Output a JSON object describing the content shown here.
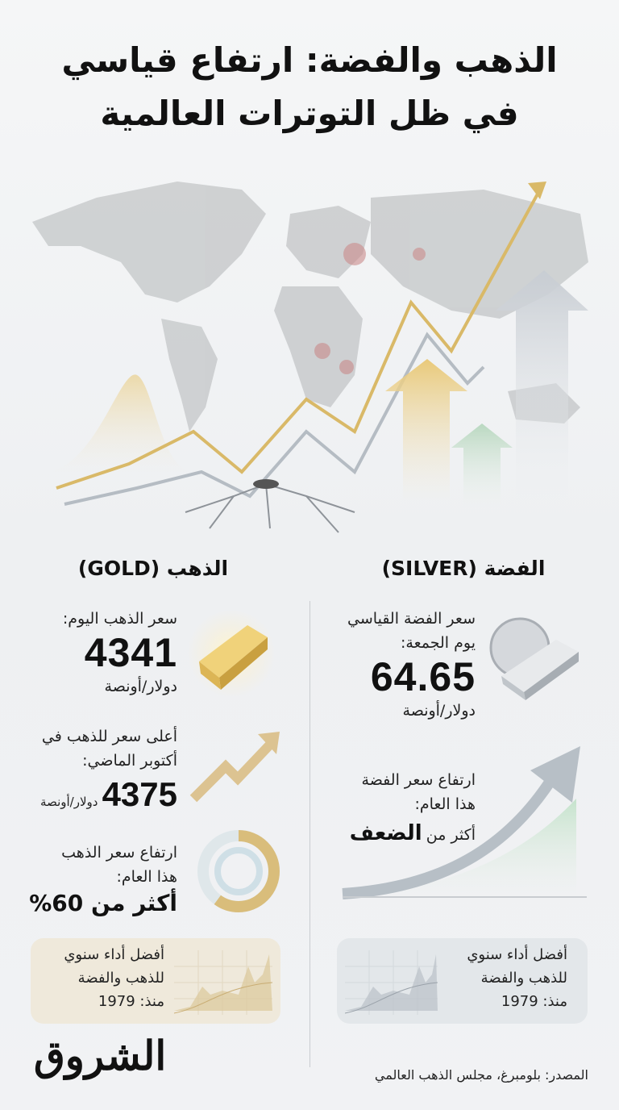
{
  "title": {
    "line1": "الذهب والفضة: ارتفاع قياسي",
    "line2": "في ظل التوترات العالمية"
  },
  "gold": {
    "header": "الذهب (GOLD)",
    "today_label": "سعر الذهب اليوم:",
    "today_price": "4341",
    "unit": "دولار/أونصة",
    "record_label_1": "أعلى سعر للذهب في",
    "record_label_2": "أكتوبر الماضي:",
    "record_price": "4375",
    "record_unit": "دولار/أونصة",
    "rise_label_1": "ارتفاع سعر الذهب",
    "rise_label_2": "هذا العام:",
    "rise_value": "أكثر من 60%",
    "rise_percent": 60,
    "card": {
      "line1": "أفضل أداء سنوي",
      "line2": "للذهب والفضة",
      "line3": "منذ: 1979"
    },
    "color": "#d4b46a"
  },
  "silver": {
    "header": "الفضة (SILVER)",
    "price_label_1": "سعر الفضة القياسي",
    "price_label_2": "يوم الجمعة:",
    "price": "64.65",
    "unit": "دولار/أونصة",
    "rise_label_1": "ارتفاع سعر الفضة",
    "rise_label_2": "هذا العام:",
    "rise_prefix": "أكثر من",
    "rise_value": "الضعف",
    "card": {
      "line1": "أفضل أداء سنوي",
      "line2": "للذهب والفضة",
      "line3": "منذ: 1979"
    },
    "color": "#b9bfc6"
  },
  "logo": "الشروق",
  "source": "المصدر: بلومبرغ، مجلس الذهب العالمي"
}
